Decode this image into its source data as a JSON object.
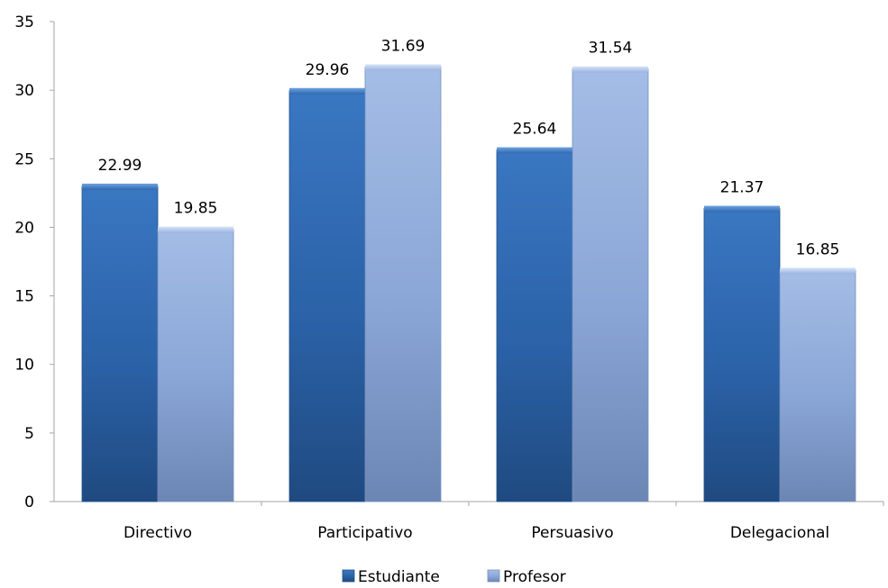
{
  "chart_data": {
    "type": "bar",
    "title": "",
    "xlabel": "",
    "ylabel": "",
    "categories": [
      "Directivo",
      "Participativo",
      "Persuasivo",
      "Delegacional"
    ],
    "series": [
      {
        "name": "Estudiante",
        "values": [
          22.99,
          29.96,
          25.64,
          21.37
        ],
        "color": "#2f68b0"
      },
      {
        "name": "Profesor",
        "values": [
          19.85,
          31.69,
          31.54,
          16.85
        ],
        "color": "#8ea9d8"
      }
    ],
    "data_labels": [
      [
        "22.99",
        "29.96",
        "25.64",
        "21.37"
      ],
      [
        "19.85",
        "31.69",
        "31.54",
        "16.85"
      ]
    ],
    "ylim": [
      0,
      35
    ],
    "yticks": [
      0,
      5,
      10,
      15,
      20,
      25,
      30,
      35
    ],
    "grid": false,
    "legend_position": "bottom"
  }
}
